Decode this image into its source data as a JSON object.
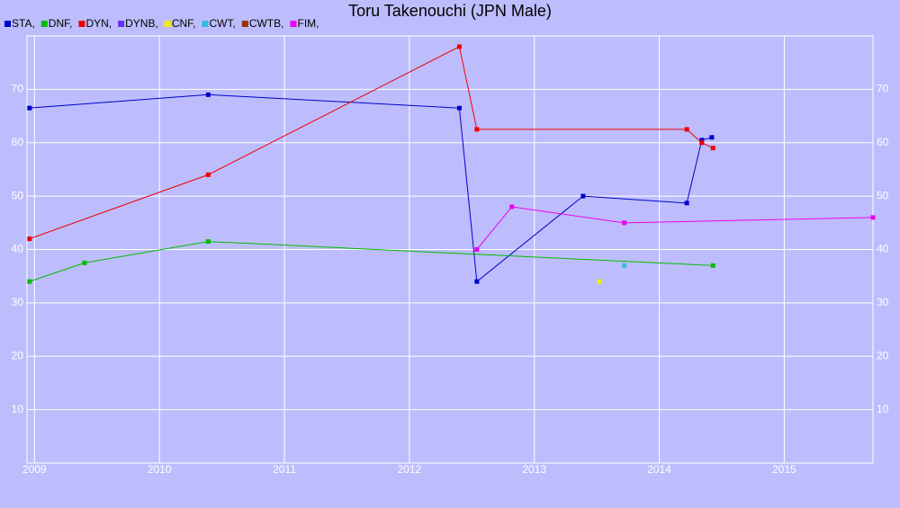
{
  "chart_data": {
    "type": "line",
    "title": "Toru Takenouchi (JPN Male)",
    "xlim": [
      2008.94,
      2015.71
    ],
    "xticks": [
      2009,
      2010,
      2011,
      2012,
      2013,
      2014,
      2015
    ],
    "ylim": [
      0,
      80
    ],
    "yticks": [
      10,
      20,
      30,
      40,
      50,
      60,
      70
    ],
    "grid": true,
    "series": [
      {
        "name": "STA,",
        "color": "#0000cc",
        "x": [
          2008.96,
          2010.39,
          2012.4,
          2012.54,
          2013.39,
          2014.22,
          2014.34,
          2014.42
        ],
        "values": [
          66.5,
          69,
          66.5,
          34,
          50,
          48.7,
          60.5,
          61
        ]
      },
      {
        "name": "DNF,",
        "color": "#00bb00",
        "x": [
          2008.96,
          2009.4,
          2010.39,
          2014.43
        ],
        "values": [
          34,
          37.5,
          41.5,
          37
        ]
      },
      {
        "name": "DYN,",
        "color": "#ee0000",
        "x": [
          2008.96,
          2010.39,
          2012.4,
          2012.54,
          2014.22,
          2014.34,
          2014.43
        ],
        "values": [
          42,
          54,
          78,
          62.5,
          62.5,
          60,
          59
        ]
      },
      {
        "name": "DYNB,",
        "color": "#6633ee",
        "x": [],
        "values": []
      },
      {
        "name": "CNF,",
        "color": "#eeee00",
        "x": [
          2013.52
        ],
        "values": [
          34
        ]
      },
      {
        "name": "CWT,",
        "color": "#33bbdd",
        "x": [
          2013.72
        ],
        "values": [
          37
        ]
      },
      {
        "name": "CWTB,",
        "color": "#993300",
        "x": [],
        "values": []
      },
      {
        "name": "FIM,",
        "color": "#ee00ee",
        "x": [
          2012.54,
          2012.82,
          2013.72,
          2015.71
        ],
        "values": [
          40,
          48,
          45,
          46
        ]
      }
    ]
  }
}
